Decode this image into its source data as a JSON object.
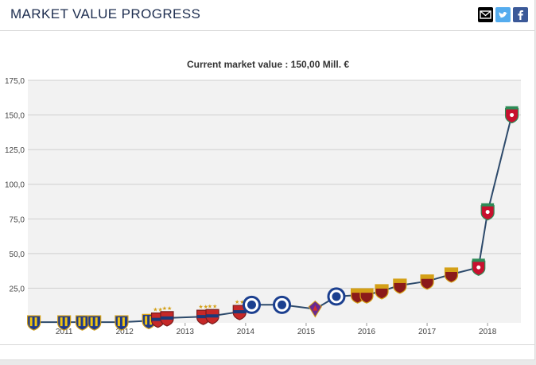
{
  "header": {
    "title": "MARKET VALUE PROGRESS",
    "share_icons": [
      "email-icon",
      "twitter-icon",
      "facebook-icon"
    ]
  },
  "colors": {
    "line": "#2d4a6b",
    "grid": "#cfcfcf",
    "plot_bg": "#f2f2f2",
    "title_text": "#1d2d4f",
    "twitter": "#55acee",
    "facebook": "#3b5998",
    "email": "#000000"
  },
  "chart_data": {
    "type": "line",
    "title": "Current market value : 150,00 Mill. €",
    "xlabel": "",
    "ylabel": "",
    "ylim": [
      0,
      175
    ],
    "y_ticks": [
      "175,0",
      "150,0",
      "125,0",
      "100,0",
      "75,0",
      "50,0",
      "25,0"
    ],
    "x_ticks": [
      "2011",
      "2012",
      "2013",
      "2014",
      "2015",
      "2016",
      "2017",
      "2018"
    ],
    "grid": true,
    "series": [
      {
        "points": [
          {
            "x": 2010.5,
            "y": 0.5,
            "club": "striped-blue-yellow"
          },
          {
            "x": 2011.0,
            "y": 0.5,
            "club": "striped-blue-yellow"
          },
          {
            "x": 2011.3,
            "y": 0.5,
            "club": "striped-blue-yellow"
          },
          {
            "x": 2011.5,
            "y": 0.5,
            "club": "striped-blue-yellow"
          },
          {
            "x": 2011.95,
            "y": 0.5,
            "club": "striped-blue-yellow"
          },
          {
            "x": 2012.4,
            "y": 1.5,
            "club": "striped-blue-yellow"
          },
          {
            "x": 2012.55,
            "y": 2.5,
            "club": "basel"
          },
          {
            "x": 2012.7,
            "y": 3.5,
            "club": "basel"
          },
          {
            "x": 2013.3,
            "y": 4.5,
            "club": "basel"
          },
          {
            "x": 2013.45,
            "y": 5.0,
            "club": "basel"
          },
          {
            "x": 2013.9,
            "y": 8.0,
            "club": "basel"
          },
          {
            "x": 2014.1,
            "y": 13.0,
            "club": "chelsea"
          },
          {
            "x": 2014.6,
            "y": 13.0,
            "club": "chelsea"
          },
          {
            "x": 2015.15,
            "y": 10.0,
            "club": "fiorentina"
          },
          {
            "x": 2015.5,
            "y": 19.0,
            "club": "chelsea"
          },
          {
            "x": 2015.85,
            "y": 20.0,
            "club": "roma"
          },
          {
            "x": 2016.0,
            "y": 20.0,
            "club": "roma"
          },
          {
            "x": 2016.25,
            "y": 23.0,
            "club": "roma"
          },
          {
            "x": 2016.55,
            "y": 27.0,
            "club": "roma"
          },
          {
            "x": 2017.0,
            "y": 30.0,
            "club": "roma"
          },
          {
            "x": 2017.4,
            "y": 35.0,
            "club": "roma"
          },
          {
            "x": 2017.85,
            "y": 40.0,
            "club": "liverpool"
          },
          {
            "x": 2018.0,
            "y": 80.0,
            "club": "liverpool"
          },
          {
            "x": 2018.4,
            "y": 150.0,
            "club": "liverpool"
          }
        ]
      }
    ]
  }
}
